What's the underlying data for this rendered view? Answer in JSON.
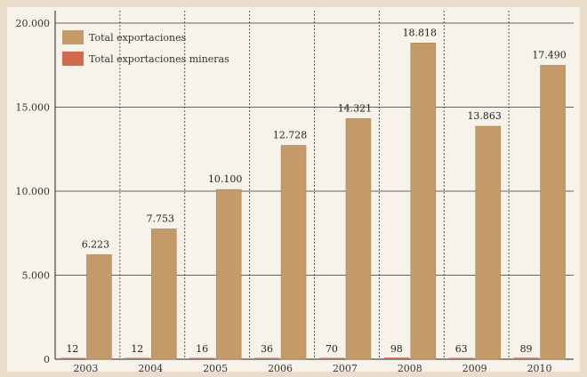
{
  "chart_data": {
    "type": "bar",
    "categories": [
      "2003",
      "2004",
      "2005",
      "2006",
      "2007",
      "2008",
      "2009",
      "2010"
    ],
    "series": [
      {
        "name": "Total exportaciones mineras",
        "color": "#cf6a4e",
        "values": [
          12,
          12,
          16,
          36,
          70,
          98,
          63,
          89
        ],
        "labels": [
          "12",
          "12",
          "16",
          "36",
          "70",
          "98",
          "63",
          "89"
        ]
      },
      {
        "name": "Total exportaciones",
        "color": "#c39a68",
        "values": [
          6223,
          7753,
          10100,
          12728,
          14321,
          18818,
          13863,
          17490
        ],
        "labels": [
          "6.223",
          "7.753",
          "10.100",
          "12.728",
          "14.321",
          "18.818",
          "13.863",
          "17.490"
        ]
      }
    ],
    "y_ticks": [
      0,
      5000,
      10000,
      15000,
      20000
    ],
    "y_tick_labels": [
      "0",
      "5.000",
      "10.000",
      "15.000",
      "20.000"
    ],
    "ylim": [
      0,
      20000
    ],
    "grid": true,
    "legend_position": "top-left"
  },
  "colors": {
    "frame": "#e9dcc8",
    "background": "#f7f2ea",
    "grid": "#333333"
  }
}
